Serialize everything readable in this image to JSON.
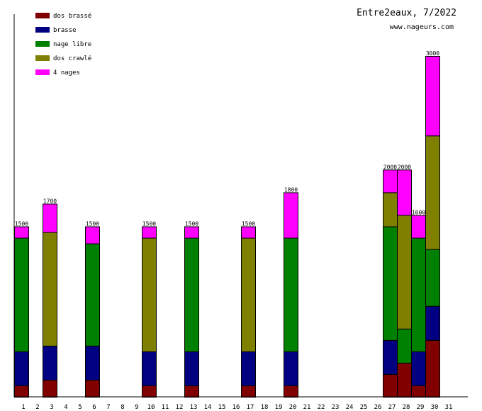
{
  "chart_data": {
    "type": "bar",
    "stacked": true,
    "title": "Entre2eaux, 7/2022",
    "subtitle": "www.nageurs.com",
    "xlabel": "",
    "ylabel": "",
    "ylim": [
      0,
      3350
    ],
    "grid": false,
    "legend_position": "top-left",
    "categories": [
      "1",
      "2",
      "3",
      "4",
      "5",
      "6",
      "7",
      "8",
      "9",
      "10",
      "11",
      "12",
      "13",
      "14",
      "15",
      "16",
      "17",
      "18",
      "19",
      "20",
      "21",
      "22",
      "23",
      "24",
      "25",
      "26",
      "27",
      "28",
      "29",
      "30",
      "31"
    ],
    "series": [
      {
        "name": "dos brassé",
        "color": "#800000",
        "values": [
          100,
          0,
          150,
          0,
          0,
          150,
          0,
          0,
          0,
          100,
          0,
          0,
          100,
          0,
          0,
          0,
          100,
          0,
          0,
          100,
          0,
          0,
          0,
          0,
          0,
          0,
          200,
          300,
          100,
          500,
          0
        ]
      },
      {
        "name": "brasse",
        "color": "#000080",
        "values": [
          300,
          0,
          300,
          0,
          0,
          300,
          0,
          0,
          0,
          300,
          0,
          0,
          300,
          0,
          0,
          0,
          300,
          0,
          0,
          300,
          0,
          0,
          0,
          0,
          0,
          0,
          300,
          0,
          300,
          300,
          0
        ]
      },
      {
        "name": "nage libre",
        "color": "#008000",
        "values": [
          1000,
          0,
          0,
          0,
          0,
          900,
          0,
          0,
          0,
          0,
          0,
          0,
          1000,
          0,
          0,
          0,
          0,
          0,
          0,
          1000,
          0,
          0,
          0,
          0,
          0,
          0,
          1000,
          300,
          1000,
          500,
          0
        ]
      },
      {
        "name": "dos crawlé",
        "color": "#808000",
        "values": [
          0,
          0,
          1000,
          0,
          0,
          0,
          0,
          0,
          0,
          1000,
          0,
          0,
          0,
          0,
          0,
          0,
          1000,
          0,
          0,
          0,
          0,
          0,
          0,
          0,
          0,
          0,
          300,
          1000,
          0,
          1000,
          0
        ]
      },
      {
        "name": "4 nages",
        "color": "#ff00ff",
        "values": [
          100,
          0,
          250,
          0,
          0,
          150,
          0,
          0,
          0,
          100,
          0,
          0,
          100,
          0,
          0,
          0,
          100,
          0,
          0,
          400,
          0,
          0,
          0,
          0,
          0,
          0,
          200,
          400,
          200,
          700,
          0
        ]
      }
    ],
    "totals": [
      1500,
      0,
      1700,
      0,
      0,
      1500,
      0,
      0,
      0,
      1500,
      0,
      0,
      1500,
      0,
      0,
      0,
      1500,
      0,
      0,
      1800,
      0,
      0,
      0,
      0,
      0,
      0,
      2000,
      2000,
      1600,
      3000,
      0
    ]
  }
}
